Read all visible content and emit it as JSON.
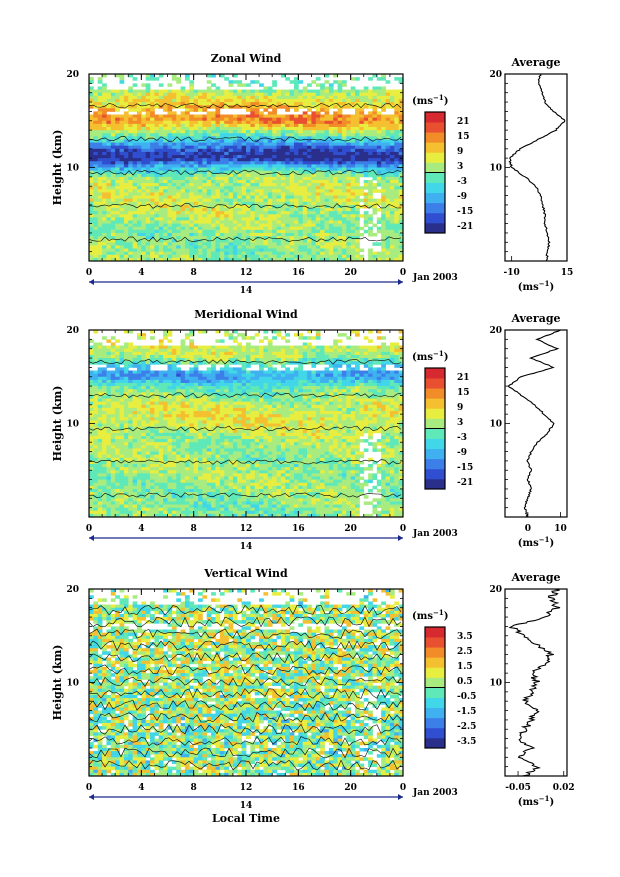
{
  "figure": {
    "x_axis_label": "Local Time",
    "date_label": "Jan 2003",
    "day_label": "14",
    "y_axis_label": "Height (km)",
    "x_ticks": [
      "0",
      "4",
      "8",
      "12",
      "16",
      "20",
      "0"
    ],
    "y_ticks": [
      "20",
      "10"
    ],
    "colorbar_unit_base": "(ms",
    "colorbar_unit_exp": "−1",
    "avg_unit_base": "(ms",
    "avg_unit_exp": "−1"
  },
  "colors": {
    "colormap": [
      "#2a2f8c",
      "#2f4fd0",
      "#3c7fe8",
      "#3fb0f0",
      "#41d6e8",
      "#5fe8b8",
      "#a8ec80",
      "#e8ee40",
      "#f5c030",
      "#f28c28",
      "#e85030",
      "#d72a30"
    ]
  },
  "chart_data": [
    {
      "type": "heatmap",
      "title": "Zonal Wind",
      "x_range_hours": [
        0,
        24
      ],
      "ylim_km": [
        0,
        20
      ],
      "colorbar_ticks": [
        "21",
        "15",
        "9",
        "3",
        "-3",
        "-9",
        "-15",
        "-21"
      ],
      "colorbar_range": [
        -24,
        24
      ],
      "approx_profile_by_height": {
        "height_km": [
          1,
          3,
          5,
          7,
          9,
          10,
          11,
          12,
          13,
          14,
          15,
          16,
          17,
          18,
          19
        ],
        "value": [
          1,
          1,
          3,
          4,
          2,
          -8,
          -22,
          -18,
          -6,
          4,
          14,
          12,
          8,
          3,
          -2
        ]
      },
      "average_panel": {
        "title": "Average",
        "xlim": [
          -13,
          15
        ],
        "x_ticks": [
          "-10",
          "15"
        ],
        "y_ticks": [
          "20",
          "10"
        ],
        "height_km": [
          0,
          1,
          2,
          3,
          4,
          5,
          6,
          7,
          8,
          9,
          10,
          11,
          12,
          13,
          14,
          15,
          16,
          17,
          18,
          19,
          20
        ],
        "value": [
          6,
          6,
          7,
          6,
          5,
          5,
          4,
          3,
          1,
          -4,
          -10,
          -11,
          -6,
          2,
          10,
          14,
          9,
          5,
          4,
          2,
          3
        ]
      }
    },
    {
      "type": "heatmap",
      "title": "Meridional Wind",
      "x_range_hours": [
        0,
        24
      ],
      "ylim_km": [
        0,
        20
      ],
      "colorbar_ticks": [
        "21",
        "15",
        "9",
        "3",
        "-3",
        "-9",
        "-15",
        "-21"
      ],
      "colorbar_range": [
        -24,
        24
      ],
      "approx_profile_by_height": {
        "height_km": [
          1,
          3,
          5,
          7,
          9,
          10,
          11,
          12,
          13,
          14,
          15,
          16,
          17,
          18
        ],
        "value": [
          0,
          1,
          2,
          1,
          3,
          5,
          6,
          4,
          1,
          -2,
          -12,
          -6,
          2,
          4
        ]
      },
      "average_panel": {
        "title": "Average",
        "xlim": [
          -7,
          12
        ],
        "x_ticks": [
          "0",
          "10"
        ],
        "y_ticks": [
          "20",
          "10"
        ],
        "height_km": [
          0,
          1,
          2,
          3,
          4,
          5,
          6,
          7,
          8,
          9,
          10,
          11,
          12,
          13,
          14,
          15,
          16,
          17,
          18,
          19,
          20
        ],
        "value": [
          0,
          -1,
          0,
          1,
          0,
          1,
          0,
          1,
          3,
          6,
          8,
          5,
          2,
          -2,
          -6,
          -2,
          8,
          1,
          9,
          3,
          10
        ]
      }
    },
    {
      "type": "heatmap",
      "title": "Vertical Wind",
      "x_range_hours": [
        0,
        24
      ],
      "ylim_km": [
        0,
        20
      ],
      "colorbar_ticks": [
        "3.5",
        "2.5",
        "1.5",
        "0.5",
        "-0.5",
        "-1.5",
        "-2.5",
        "-3.5"
      ],
      "colorbar_range": [
        -4,
        4
      ],
      "approx_profile_by_height": {
        "height_km": [
          1,
          5,
          10,
          15,
          19
        ],
        "value": [
          0.2,
          0.1,
          0.3,
          0.4,
          0.2
        ]
      },
      "average_panel": {
        "title": "Average",
        "xlim": [
          -0.07,
          0.025
        ],
        "x_ticks": [
          "-0.05",
          "0.02"
        ],
        "y_ticks": [
          "20",
          "10"
        ],
        "height_km": [
          0,
          1,
          2,
          3,
          4,
          5,
          6,
          7,
          8,
          9,
          10,
          11,
          12,
          13,
          14,
          15,
          16,
          17,
          18,
          19,
          20
        ],
        "value": [
          -0.04,
          -0.02,
          -0.05,
          -0.03,
          -0.05,
          -0.04,
          -0.03,
          -0.02,
          -0.04,
          -0.03,
          -0.02,
          -0.03,
          -0.01,
          0.0,
          -0.02,
          -0.04,
          -0.06,
          -0.01,
          0.01,
          0.0,
          0.01
        ]
      }
    }
  ]
}
